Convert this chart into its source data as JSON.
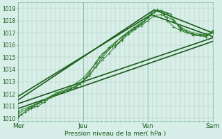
{
  "xlabel": "Pression niveau de la mer( hPa )",
  "ylim": [
    1009.8,
    1019.5
  ],
  "xlim": [
    0,
    3.0
  ],
  "background_color": "#d8eee8",
  "grid_color": "#aaccbb",
  "xtick_labels": [
    "Mer",
    "Jeu",
    "Ven",
    "Sam"
  ],
  "xtick_positions": [
    0,
    1,
    2,
    3
  ],
  "ytick_positions": [
    1010,
    1011,
    1012,
    1013,
    1014,
    1015,
    1016,
    1017,
    1018,
    1019
  ],
  "series": [
    {
      "x": [
        0.0,
        0.05,
        0.1,
        0.15,
        0.2,
        0.25,
        0.3,
        0.35,
        0.4,
        0.45,
        0.5,
        0.55,
        0.6,
        0.65,
        0.7,
        0.75,
        0.8,
        0.85,
        0.9,
        0.95,
        1.0,
        1.05,
        1.1,
        1.15,
        1.2,
        1.25,
        1.3,
        1.35,
        1.4,
        1.45,
        1.5,
        1.55,
        1.6,
        1.65,
        1.7,
        1.75,
        1.8,
        1.85,
        1.9,
        1.95,
        2.0,
        2.05,
        2.1,
        2.15,
        2.2,
        2.25,
        2.3,
        2.4,
        2.5,
        2.6,
        2.7,
        2.8,
        2.9,
        3.0
      ],
      "y": [
        1010.1,
        1010.3,
        1010.5,
        1010.7,
        1010.9,
        1011.0,
        1011.2,
        1011.3,
        1011.5,
        1011.6,
        1011.8,
        1011.9,
        1012.0,
        1012.1,
        1012.2,
        1012.3,
        1012.4,
        1012.5,
        1012.6,
        1012.8,
        1013.0,
        1013.4,
        1013.8,
        1014.2,
        1014.6,
        1015.0,
        1015.3,
        1015.5,
        1015.7,
        1015.9,
        1016.0,
        1016.2,
        1016.5,
        1016.8,
        1017.0,
        1017.2,
        1017.4,
        1017.6,
        1017.8,
        1018.0,
        1018.3,
        1018.6,
        1018.85,
        1018.9,
        1018.75,
        1018.5,
        1018.0,
        1017.5,
        1017.2,
        1017.0,
        1016.9,
        1016.8,
        1016.9,
        1017.0
      ],
      "color": "#2d7a2d",
      "lw": 0.7,
      "marker": "+",
      "ms": 2.5,
      "ls": "-"
    },
    {
      "x": [
        0.0,
        0.1,
        0.2,
        0.3,
        0.4,
        0.5,
        0.6,
        0.7,
        0.8,
        0.9,
        1.0,
        1.1,
        1.2,
        1.3,
        1.4,
        1.5,
        1.6,
        1.7,
        1.8,
        1.9,
        2.0,
        2.1,
        2.2,
        2.3,
        2.4,
        2.5,
        2.6,
        2.7,
        2.8,
        2.9,
        3.0
      ],
      "y": [
        1010.2,
        1010.5,
        1010.8,
        1011.0,
        1011.3,
        1011.7,
        1012.0,
        1012.2,
        1012.4,
        1012.7,
        1013.1,
        1013.6,
        1014.2,
        1014.8,
        1015.3,
        1015.9,
        1016.4,
        1016.9,
        1017.3,
        1017.6,
        1018.0,
        1018.4,
        1018.5,
        1018.3,
        1018.0,
        1017.5,
        1017.2,
        1017.0,
        1016.9,
        1016.8,
        1017.1
      ],
      "color": "#2d7a2d",
      "lw": 0.7,
      "marker": "+",
      "ms": 2.5,
      "ls": "-"
    },
    {
      "x": [
        0.0,
        0.15,
        0.3,
        0.5,
        0.7,
        0.9,
        1.1,
        1.3,
        1.5,
        1.7,
        1.9,
        2.05,
        2.15,
        2.3,
        2.5,
        2.7,
        2.9,
        3.0
      ],
      "y": [
        1010.4,
        1010.8,
        1011.2,
        1011.8,
        1012.2,
        1012.6,
        1013.5,
        1015.0,
        1016.2,
        1017.1,
        1017.7,
        1018.5,
        1018.9,
        1018.6,
        1017.4,
        1016.8,
        1016.7,
        1017.0
      ],
      "color": "#2d7a2d",
      "lw": 0.7,
      "marker": "+",
      "ms": 2.5,
      "ls": "-"
    },
    {
      "x": [
        0.0,
        0.2,
        0.4,
        0.6,
        0.8,
        1.0,
        1.2,
        1.4,
        1.6,
        1.8,
        2.0,
        2.1,
        2.2,
        2.35,
        2.5,
        2.7,
        2.9,
        3.0
      ],
      "y": [
        1010.6,
        1011.0,
        1011.5,
        1012.1,
        1012.5,
        1013.3,
        1014.5,
        1015.8,
        1016.7,
        1017.5,
        1018.2,
        1018.7,
        1018.85,
        1018.55,
        1017.3,
        1016.9,
        1016.7,
        1017.2
      ],
      "color": "#2d7a2d",
      "lw": 0.7,
      "marker": "+",
      "ms": 2.5,
      "ls": "-"
    },
    {
      "x": [
        0.0,
        3.0
      ],
      "y": [
        1010.8,
        1016.3
      ],
      "color": "#1a5c1a",
      "lw": 1.2,
      "marker": null,
      "ms": 0,
      "ls": "-"
    },
    {
      "x": [
        0.0,
        3.0
      ],
      "y": [
        1011.2,
        1016.6
      ],
      "color": "#1a5c1a",
      "lw": 1.2,
      "marker": null,
      "ms": 0,
      "ls": "-"
    },
    {
      "x": [
        0.0,
        2.1,
        3.0
      ],
      "y": [
        1011.5,
        1018.9,
        1017.0
      ],
      "color": "#1a5c1a",
      "lw": 1.2,
      "marker": null,
      "ms": 0,
      "ls": "-"
    },
    {
      "x": [
        0.0,
        2.05,
        3.0
      ],
      "y": [
        1011.8,
        1018.5,
        1016.7
      ],
      "color": "#1a5c1a",
      "lw": 1.2,
      "marker": null,
      "ms": 0,
      "ls": "-"
    }
  ]
}
